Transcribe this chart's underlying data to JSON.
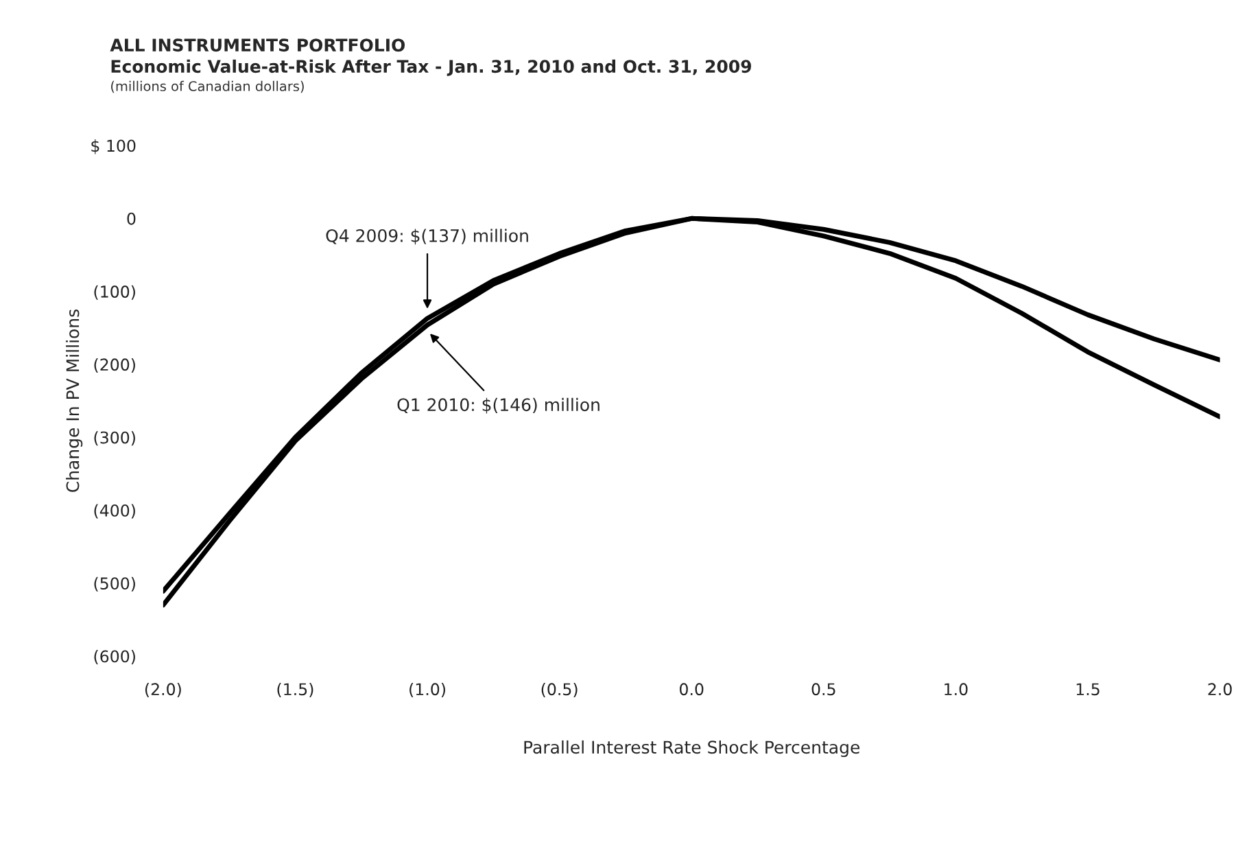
{
  "chart_data": {
    "type": "line",
    "title": "ALL INSTRUMENTS PORTFOLIO",
    "subtitle": "Economic Value-at-Risk After Tax - Jan. 31, 2010 and Oct. 31, 2009",
    "annotations": [
      "(millions of Canadian dollars)",
      {
        "text": "Q4 2009: $(137) million",
        "x": -1.0,
        "y": -137
      },
      {
        "text": "Q1 2010: $(146) million",
        "x": -1.0,
        "y": -146
      }
    ],
    "xlabel": "Parallel Interest Rate Shock Percentage",
    "ylabel": "Change In PV Millions",
    "x": [
      -2.0,
      -1.75,
      -1.5,
      -1.25,
      -1.0,
      -0.75,
      -0.5,
      -0.25,
      0.0,
      0.25,
      0.5,
      0.75,
      1.0,
      1.25,
      1.5,
      1.75,
      2.0
    ],
    "series": [
      {
        "color": "#000000",
        "values": [
          -511,
          -405,
          -300,
          -212,
          -137,
          -85,
          -48,
          -17,
          0,
          -3,
          -15,
          -33,
          -58,
          -93,
          -132,
          -165,
          -194
        ]
      },
      {
        "color": "#000000",
        "values": [
          -530,
          -415,
          -305,
          -220,
          -146,
          -90,
          -52,
          -20,
          0,
          -5,
          -24,
          -48,
          -82,
          -130,
          -183,
          -228,
          -272
        ]
      }
    ],
    "xlim": [
      -2.0,
      2.0
    ],
    "xticks": [
      {
        "value": -2.0,
        "label": "(2.0)"
      },
      {
        "value": -1.5,
        "label": "(1.5)"
      },
      {
        "value": -1.0,
        "label": "(1.0)"
      },
      {
        "value": -0.5,
        "label": "(0.5)"
      },
      {
        "value": 0.0,
        "label": "0.0"
      },
      {
        "value": 0.5,
        "label": "0.5"
      },
      {
        "value": 1.0,
        "label": "1.0"
      },
      {
        "value": 1.5,
        "label": "1.5"
      },
      {
        "value": 2.0,
        "label": "2.0"
      }
    ],
    "ylim": [
      -600,
      100
    ],
    "yticks": [
      {
        "value": 100,
        "label": "$ 100"
      },
      0,
      {
        "value": -100,
        "label": "(100)"
      },
      {
        "value": -200,
        "label": "(200)"
      },
      {
        "value": -300,
        "label": "(300)"
      },
      {
        "value": -400,
        "label": "(400)"
      },
      {
        "value": -500,
        "label": "(500)"
      },
      {
        "value": -600,
        "label": "(600)"
      }
    ],
    "grid": false,
    "legend": false,
    "line_style": "solid"
  }
}
